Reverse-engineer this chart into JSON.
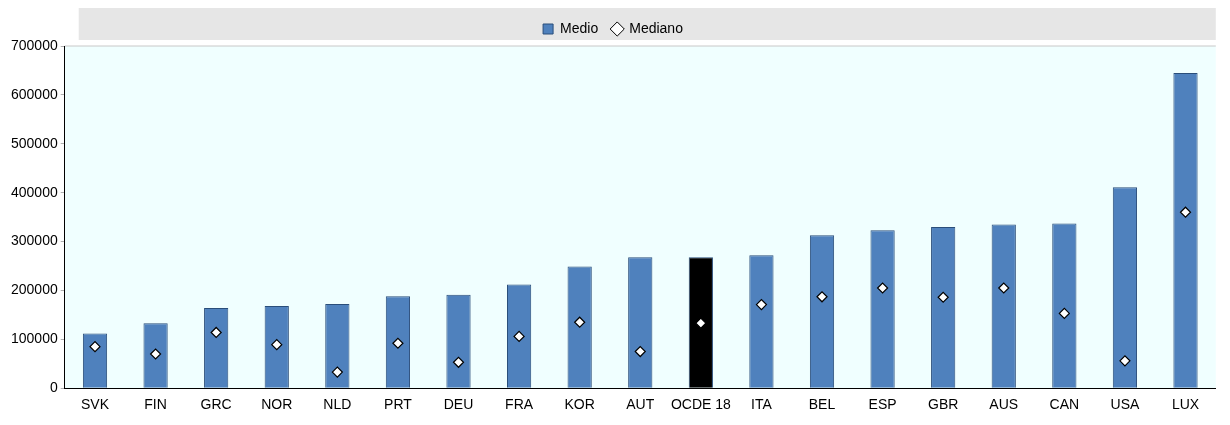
{
  "chart_data": {
    "type": "bar",
    "categories": [
      "SVK",
      "FIN",
      "GRC",
      "NOR",
      "NLD",
      "PRT",
      "DEU",
      "FRA",
      "KOR",
      "AUT",
      "OCDE 18",
      "ITA",
      "BEL",
      "ESP",
      "GBR",
      "AUS",
      "CAN",
      "USA",
      "LUX"
    ],
    "series": [
      {
        "name": "Medio",
        "color": "#4f81bd",
        "colors": [
          "#4f81bd",
          "#4f81bd",
          "#4f81bd",
          "#4f81bd",
          "#4f81bd",
          "#4f81bd",
          "#4f81bd",
          "#4f81bd",
          "#4f81bd",
          "#4f81bd",
          "#000000",
          "#4f81bd",
          "#4f81bd",
          "#4f81bd",
          "#4f81bd",
          "#4f81bd",
          "#4f81bd",
          "#4f81bd",
          "#4f81bd"
        ],
        "values": [
          112000,
          133000,
          164000,
          168000,
          172000,
          188000,
          191000,
          212000,
          249000,
          268000,
          268000,
          272000,
          313000,
          323000,
          330000,
          335000,
          337000,
          411000,
          645000
        ]
      },
      {
        "name": "Mediano",
        "type": "scatter",
        "color": "#ffffff",
        "marker": "diamond",
        "x": [
          "SVK",
          "FIN",
          "GRC",
          "NOR",
          "NLD",
          "PRT",
          "DEU",
          "FRA",
          "KOR",
          "AUT",
          "OCDE 18",
          "ITA",
          "BEL",
          "ESP",
          "GBR",
          "AUS",
          "CAN",
          "USA",
          "LUX"
        ],
        "values": [
          85000,
          70000,
          114000,
          89000,
          33000,
          92000,
          53000,
          106000,
          135000,
          75000,
          133000,
          171000,
          187000,
          205000,
          186000,
          205000,
          153000,
          56000,
          360000
        ]
      }
    ],
    "ylim": [
      0,
      700000
    ],
    "yticks": [
      0,
      100000,
      200000,
      300000,
      400000,
      500000,
      600000,
      700000
    ],
    "grid": false,
    "legend": "top"
  }
}
